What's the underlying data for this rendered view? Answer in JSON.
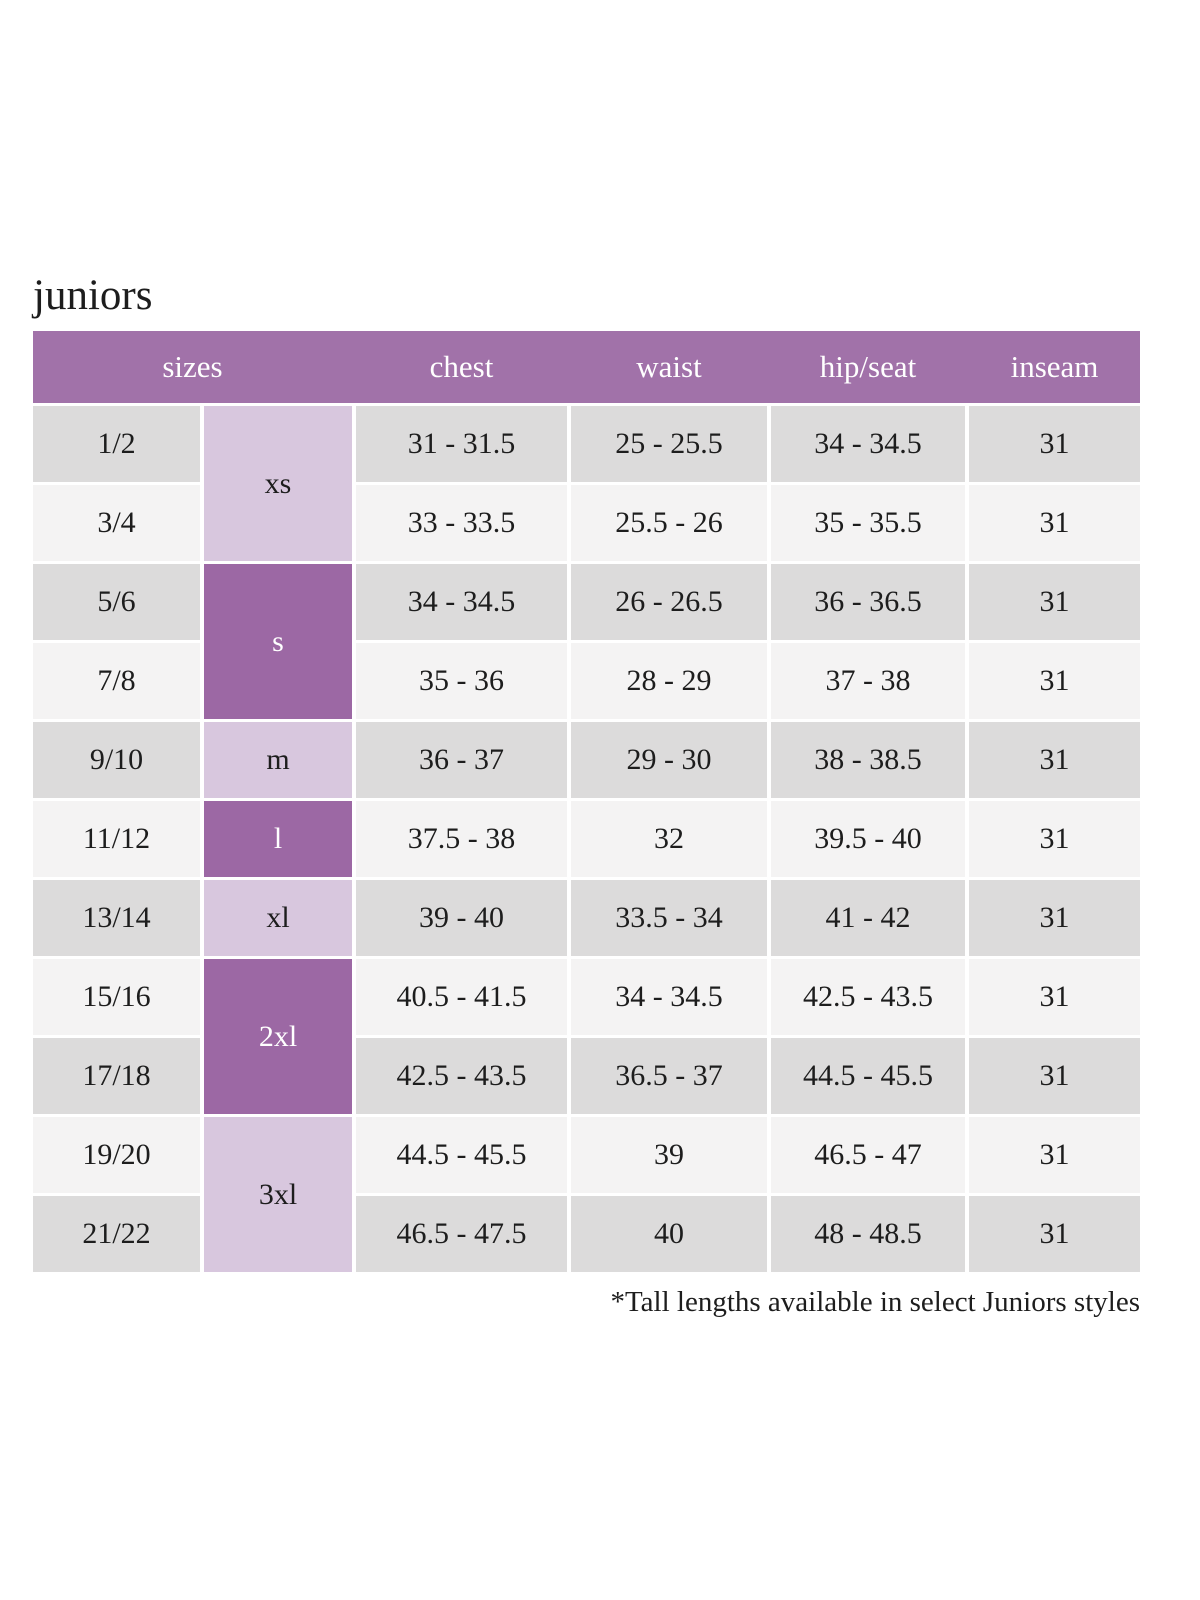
{
  "title": "juniors",
  "footnote": "*Tall lengths available in select Juniors styles",
  "colors": {
    "header_bg": "#a172a9",
    "group_dark_bg": "#9c68a4",
    "group_light_bg": "#d8c7de",
    "row_gray_bg": "#dcdbdb",
    "row_light_bg": "#f4f3f3",
    "header_text": "#ffffff",
    "body_text": "#1d1d1d",
    "page_bg": "#ffffff"
  },
  "table": {
    "headers": {
      "sizes": "sizes",
      "chest": "chest",
      "waist": "waist",
      "hip": "hip/seat",
      "inseam": "inseam"
    },
    "size_groups": [
      {
        "label": "xs",
        "rows": 2,
        "tone": "light"
      },
      {
        "label": "s",
        "rows": 2,
        "tone": "dark"
      },
      {
        "label": "m",
        "rows": 1,
        "tone": "light"
      },
      {
        "label": "l",
        "rows": 1,
        "tone": "dark"
      },
      {
        "label": "xl",
        "rows": 1,
        "tone": "light"
      },
      {
        "label": "2xl",
        "rows": 2,
        "tone": "dark"
      },
      {
        "label": "3xl",
        "rows": 2,
        "tone": "light"
      }
    ],
    "rows": [
      {
        "size": "1/2",
        "chest": "31 - 31.5",
        "waist": "25 - 25.5",
        "hip": "34 - 34.5",
        "inseam": "31"
      },
      {
        "size": "3/4",
        "chest": "33 - 33.5",
        "waist": "25.5 - 26",
        "hip": "35 - 35.5",
        "inseam": "31"
      },
      {
        "size": "5/6",
        "chest": "34 - 34.5",
        "waist": "26 - 26.5",
        "hip": "36 - 36.5",
        "inseam": "31"
      },
      {
        "size": "7/8",
        "chest": "35 - 36",
        "waist": "28 - 29",
        "hip": "37 - 38",
        "inseam": "31"
      },
      {
        "size": "9/10",
        "chest": "36 - 37",
        "waist": "29 - 30",
        "hip": "38 - 38.5",
        "inseam": "31"
      },
      {
        "size": "11/12",
        "chest": "37.5 - 38",
        "waist": "32",
        "hip": "39.5 - 40",
        "inseam": "31"
      },
      {
        "size": "13/14",
        "chest": "39 - 40",
        "waist": "33.5 - 34",
        "hip": "41 - 42",
        "inseam": "31"
      },
      {
        "size": "15/16",
        "chest": "40.5 - 41.5",
        "waist": "34 - 34.5",
        "hip": "42.5 - 43.5",
        "inseam": "31"
      },
      {
        "size": "17/18",
        "chest": "42.5 - 43.5",
        "waist": "36.5 - 37",
        "hip": "44.5 - 45.5",
        "inseam": "31"
      },
      {
        "size": "19/20",
        "chest": "44.5 - 45.5",
        "waist": "39",
        "hip": "46.5 - 47",
        "inseam": "31"
      },
      {
        "size": "21/22",
        "chest": "46.5 - 47.5",
        "waist": "40",
        "hip": "48 - 48.5",
        "inseam": "31"
      }
    ]
  }
}
